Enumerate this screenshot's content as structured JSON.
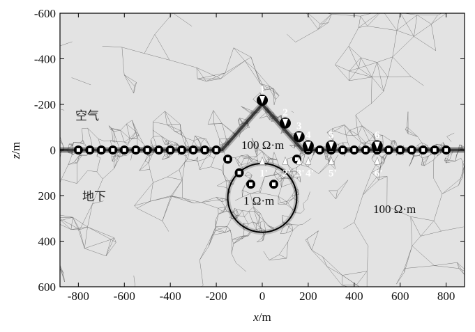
{
  "x_axis": {
    "label_var": "x",
    "label_unit": "/m",
    "ticks": [
      "-800",
      "-600",
      "-400",
      "-200",
      "0",
      "200",
      "400",
      "600",
      "800"
    ],
    "range": [
      -880,
      880
    ]
  },
  "y_axis": {
    "label_var": "z",
    "label_unit": "/m",
    "ticks": [
      "-600",
      "-400",
      "-200",
      "0",
      "200",
      "400",
      "600"
    ],
    "range": [
      -600,
      600
    ]
  },
  "regions": {
    "air": "空气",
    "underground": "地下"
  },
  "resistivity_labels": {
    "hill": "100 Ω·m",
    "anomaly": "1 Ω·m",
    "background": "100 Ω·m"
  },
  "anomaly": {
    "center_x": 0,
    "center_z": 210,
    "radius": 150
  },
  "terrain": [
    [
      -880,
      0
    ],
    [
      -175,
      0
    ],
    [
      0,
      -200
    ],
    [
      175,
      0
    ],
    [
      880,
      0
    ]
  ],
  "surface_electrodes_x": [
    -800,
    -750,
    -700,
    -650,
    -600,
    -550,
    -500,
    -450,
    -400,
    -350,
    -300,
    -250,
    -200,
    200,
    250,
    300,
    350,
    400,
    450,
    500,
    550,
    600,
    650,
    700,
    750,
    800
  ],
  "hill_electrodes": [
    [
      -150,
      40
    ],
    [
      -100,
      100
    ],
    [
      -50,
      150
    ],
    [
      50,
      150
    ],
    [
      150,
      40
    ]
  ],
  "measurement_points": [
    {
      "top_label": "1",
      "bottom_label": "1'",
      "x": 0,
      "z_top": -200
    },
    {
      "top_label": "2",
      "bottom_label": "2'",
      "x": 100,
      "z_top": -100
    },
    {
      "top_label": "3",
      "bottom_label": "3'",
      "x": 160,
      "z_top": -40
    },
    {
      "top_label": "4",
      "bottom_label": "4'",
      "x": 200,
      "z_top": 0
    },
    {
      "top_label": "5",
      "bottom_label": "5'",
      "x": 300,
      "z_top": 0
    },
    {
      "top_label": "6",
      "bottom_label": "6'",
      "x": 500,
      "z_top": 0
    }
  ],
  "colors": {
    "background": "#e3e3e3",
    "mesh": "#6c6c6c",
    "marker": "#ffffff",
    "circle": "#000000"
  }
}
